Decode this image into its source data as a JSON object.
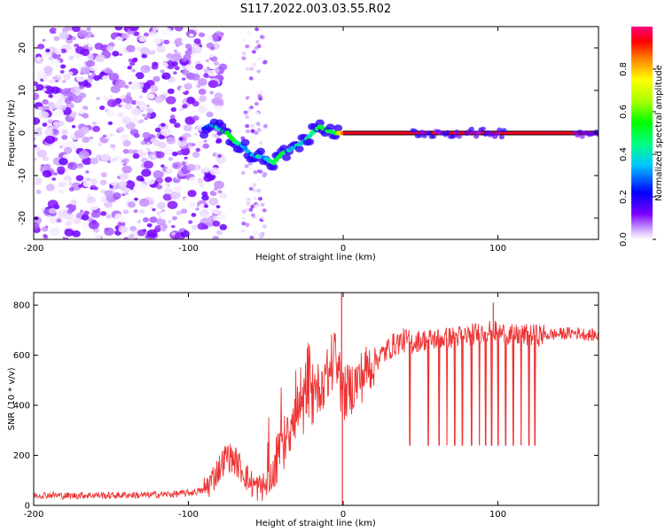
{
  "figure_title": "S117.2022.003.03.55.R02",
  "chart_data": [
    {
      "type": "heatmap",
      "title": "",
      "xlabel": "Height of straight line (km)",
      "ylabel": "Frequency (Hz)",
      "xlim": [
        -200,
        165
      ],
      "ylim": [
        -25,
        25
      ],
      "xticks": [
        -200,
        -100,
        0,
        100
      ],
      "yticks": [
        -20,
        -10,
        0,
        10,
        20
      ],
      "colorbar": {
        "label": "Normalized spectral amplitude",
        "range": [
          0,
          1
        ],
        "ticks": [
          0.0,
          0.2,
          0.4,
          0.6,
          0.8
        ],
        "colormap": [
          "#ffffff",
          "#7a00ff",
          "#0000ff",
          "#00ffff",
          "#00ff00",
          "#ffff00",
          "#ff0000",
          "#ff0080"
        ]
      },
      "noise_region_x": [
        -200,
        -85
      ],
      "noise_region_y": [
        -25,
        25
      ],
      "noise_band_2": {
        "x": [
          -65,
          -50
        ],
        "y": [
          -25,
          25
        ]
      },
      "ridge": {
        "x": [
          -90,
          -85,
          -80,
          -75,
          -70,
          -65,
          -60,
          -55,
          -50,
          -45,
          -40,
          -35,
          -30,
          -25,
          -20,
          -15,
          -10,
          -5,
          0,
          25,
          165
        ],
        "y": [
          1,
          2,
          1,
          0,
          -2,
          -3,
          -5,
          -5.5,
          -6,
          -7,
          -5,
          -4,
          -3,
          -2,
          0,
          1.5,
          0.5,
          0,
          0,
          0,
          0
        ],
        "amplitude": [
          0.25,
          0.3,
          0.4,
          0.55,
          0.5,
          0.35,
          0.3,
          0.4,
          0.35,
          0.45,
          0.5,
          0.4,
          0.35,
          0.4,
          0.45,
          0.55,
          0.5,
          0.55,
          0.9,
          0.95,
          0.95
        ]
      },
      "tail_segments": [
        {
          "x": [
            45,
            75
          ],
          "y": [
            0,
            0
          ]
        },
        {
          "x": [
            80,
            105
          ],
          "y": [
            0,
            0
          ]
        },
        {
          "x": [
            150,
            165
          ],
          "y": [
            0,
            0
          ]
        }
      ]
    },
    {
      "type": "line",
      "title": "",
      "xlabel": "Height of straight line (km)",
      "ylabel": "SNR (10 * v/v)",
      "xlim": [
        -200,
        165
      ],
      "ylim": [
        0,
        850
      ],
      "xticks": [
        -200,
        -100,
        0,
        100
      ],
      "yticks": [
        0,
        200,
        400,
        600,
        800
      ],
      "color": "#ee3333",
      "series": [
        {
          "name": "SNR",
          "x": [
            -200,
            -190,
            -180,
            -170,
            -160,
            -150,
            -140,
            -130,
            -120,
            -110,
            -100,
            -90,
            -85,
            -80,
            -75,
            -70,
            -65,
            -60,
            -55,
            -50,
            -45,
            -40,
            -35,
            -30,
            -25,
            -20,
            -15,
            -10,
            -5,
            0,
            5,
            10,
            15,
            20,
            25,
            30,
            35,
            40,
            45,
            50,
            60,
            70,
            80,
            90,
            95,
            100,
            110,
            120,
            130,
            140,
            150,
            160,
            165
          ],
          "values": [
            40,
            42,
            38,
            40,
            41,
            39,
            42,
            40,
            43,
            45,
            50,
            60,
            100,
            150,
            200,
            180,
            140,
            90,
            70,
            80,
            140,
            230,
            300,
            340,
            380,
            420,
            480,
            520,
            560,
            440,
            470,
            500,
            540,
            580,
            600,
            630,
            650,
            660,
            650,
            660,
            665,
            670,
            680,
            690,
            700,
            690,
            680,
            680,
            680,
            685,
            690,
            680,
            680
          ]
        }
      ],
      "dropouts": {
        "x": [
          43,
          55,
          62,
          67,
          72,
          77,
          83,
          88,
          92,
          96,
          100,
          105,
          110,
          115,
          120,
          124
        ],
        "low": 240
      },
      "spikes": [
        {
          "x": -1,
          "value": 850
        },
        {
          "x": -0.5,
          "value": 0
        },
        {
          "x": 97,
          "value": 810
        }
      ]
    }
  ]
}
